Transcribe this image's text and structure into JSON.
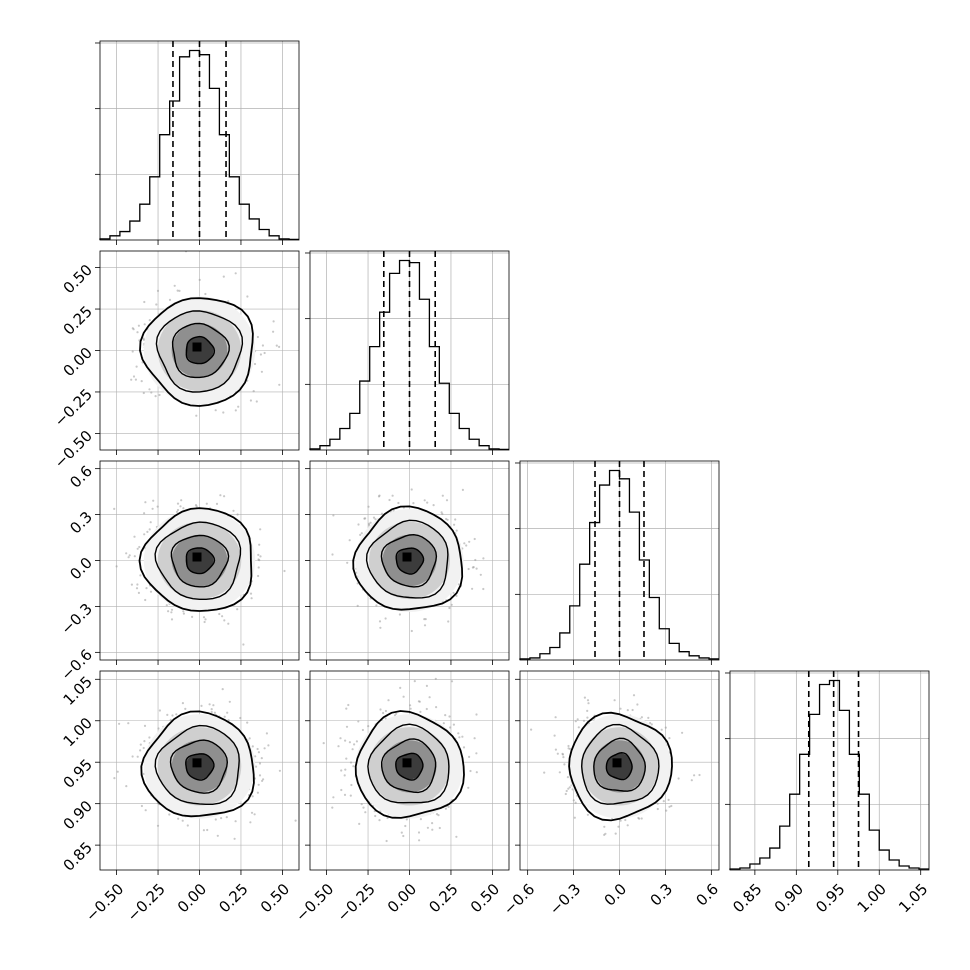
{
  "chart_data": {
    "type": "corner",
    "description_note": "",
    "parameters": [
      {
        "id": "p1",
        "range": [
          -0.6,
          0.6
        ],
        "ticks": [
          -0.5,
          -0.25,
          0.0,
          0.25,
          0.5
        ],
        "tick_labels": [
          "−0.50",
          "−0.25",
          "0.00",
          "0.25",
          "0.50"
        ]
      },
      {
        "id": "p2",
        "range": [
          -0.6,
          0.6
        ],
        "ticks": [
          -0.5,
          -0.25,
          0.0,
          0.25,
          0.5
        ],
        "tick_labels": [
          "−0.50",
          "−0.25",
          "0.00",
          "0.25",
          "0.50"
        ]
      },
      {
        "id": "p3",
        "range": [
          -0.65,
          0.65
        ],
        "ticks": [
          -0.6,
          -0.3,
          0.0,
          0.3,
          0.6
        ],
        "tick_labels": [
          "−0.6",
          "−0.3",
          "0.0",
          "0.3",
          "0.6"
        ]
      },
      {
        "id": "p4",
        "range": [
          0.82,
          1.06
        ],
        "ticks": [
          0.85,
          0.9,
          0.95,
          1.0,
          1.05
        ],
        "tick_labels": [
          "0.85",
          "0.90",
          "0.95",
          "1.00",
          "1.05"
        ]
      }
    ],
    "histograms": [
      {
        "param": "p1",
        "bin_edges": [
          -0.6,
          -0.54,
          -0.48,
          -0.42,
          -0.36,
          -0.3,
          -0.24,
          -0.18,
          -0.12,
          -0.06,
          0,
          0.06,
          0.12,
          0.18,
          0.24,
          0.3,
          0.36,
          0.42,
          0.48,
          0.54,
          0.6
        ],
        "counts": [
          0.5,
          2,
          4,
          9,
          17,
          30,
          50,
          66,
          87,
          90,
          88,
          72,
          50,
          30,
          17,
          10,
          5,
          2,
          0.5,
          0.3
        ],
        "quantiles": [
          -0.16,
          0.0,
          0.16
        ]
      },
      {
        "param": "p2",
        "bin_edges": [
          -0.6,
          -0.54,
          -0.48,
          -0.42,
          -0.36,
          -0.3,
          -0.24,
          -0.18,
          -0.12,
          -0.06,
          0,
          0.06,
          0.12,
          0.18,
          0.24,
          0.3,
          0.36,
          0.42,
          0.48,
          0.54,
          0.6
        ],
        "counts": [
          0.5,
          2,
          5,
          10,
          17,
          32,
          48,
          64,
          82,
          88,
          87,
          70,
          48,
          31,
          17,
          10,
          5,
          2,
          0.5,
          0.3
        ],
        "quantiles": [
          -0.155,
          0.0,
          0.155
        ]
      },
      {
        "param": "p3",
        "bin_edges": [
          -0.65,
          -0.585,
          -0.52,
          -0.455,
          -0.39,
          -0.325,
          -0.26,
          -0.195,
          -0.13,
          -0.065,
          0,
          0.065,
          0.13,
          0.195,
          0.26,
          0.325,
          0.39,
          0.455,
          0.52,
          0.585,
          0.65
        ],
        "counts": [
          0.5,
          1,
          3,
          6,
          13,
          26,
          46,
          66,
          84,
          91,
          87,
          71,
          48,
          30,
          15,
          8,
          4,
          2,
          1,
          0.5
        ],
        "quantiles": [
          -0.16,
          0.0,
          0.16
        ]
      },
      {
        "param": "p4",
        "bin_edges": [
          0.82,
          0.832,
          0.844,
          0.856,
          0.868,
          0.88,
          0.892,
          0.904,
          0.916,
          0.928,
          0.94,
          0.952,
          0.964,
          0.976,
          0.988,
          1.0,
          1.012,
          1.024,
          1.036,
          1.048,
          1.06
        ],
        "counts": [
          0.5,
          1,
          3,
          6,
          11,
          22,
          38,
          58,
          78,
          93,
          95,
          80,
          58,
          38,
          20,
          10,
          5,
          2,
          1,
          0.5
        ],
        "quantiles": [
          0.915,
          0.945,
          0.975
        ]
      }
    ],
    "joint": {
      "center": [
        0.0,
        0.0,
        0.0,
        0.945
      ],
      "sigma": [
        0.16,
        0.155,
        0.16,
        0.03
      ],
      "contour_levels_sigma": [
        0.5,
        1.0,
        1.5,
        2.0
      ],
      "scatter_points_per_panel": 700
    },
    "grid": true,
    "legend": "none"
  },
  "colors": {
    "line": "#000000",
    "grid": "#b0b0b0",
    "scatter": "#9a9a9a",
    "background": "#ffffff"
  }
}
